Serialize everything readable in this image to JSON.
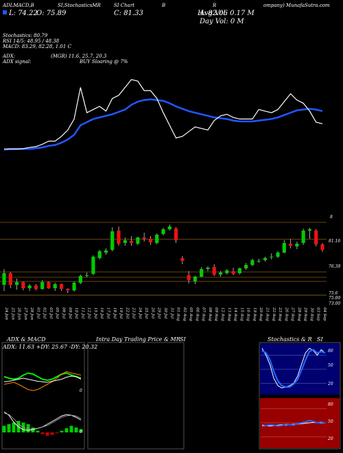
{
  "header": {
    "line1_parts": [
      "ADLMACD,B",
      "SI,StochasticsMR",
      "SI Chart",
      "B",
      "R"
    ],
    "line1_right": "ompany) MunafaSutra.com",
    "price_line": [
      "L: 74.22",
      "O: 75.89",
      "C: 81.33",
      "H: 82.06"
    ],
    "avg_vol": "Avg Vol: 0.17 M",
    "day_vol": "Day Vol: 0   M"
  },
  "indicators": {
    "stochastics": "Stochastics: 80.79",
    "rsi": "RSI 14/5: 48.95 / 48.38",
    "macd": "MACD: 83.29, 82.28, 1.01 C",
    "adx": "ADX:",
    "adx_values": "(MGR) 11.6, 25.7, 20.3",
    "adx_signal": "ADX  signal:",
    "signal_text": "BUY Sloaring @ 7%"
  },
  "price_levels": {
    "labels": [
      "8",
      "81.16",
      "76.39",
      "75.6",
      "75.00",
      "73.00"
    ]
  },
  "date_labels": [
    "24 Jun",
    "25 Jun",
    "26 Jun",
    "27 Jun",
    "28 Jun",
    "01 Jul",
    "02 Jul",
    "03 Jul",
    "05 Jul",
    "08 Jul",
    "09 Jul",
    "10 Jul",
    "11 Jul",
    "12 Jul",
    "15 Jul",
    "16 Jul",
    "17 Jul",
    "18 Jul",
    "19 Jul",
    "22 Jul",
    "23 Jul",
    "24 Jul",
    "25 Jul",
    "26 Jul",
    "29 Jul",
    "30 Jul",
    "31 Jul",
    "01 Aug",
    "02 Aug",
    "05 Aug",
    "06 Aug",
    "07 Aug",
    "08 Aug",
    "09 Aug",
    "12 Aug",
    "13 Aug",
    "14 Aug",
    "15 Aug",
    "16 Aug",
    "19 Aug",
    "20 Aug",
    "21 Aug",
    "22 Aug",
    "23 Aug",
    "26 Aug",
    "27 Aug",
    "28 Aug",
    "29 Aug",
    "30 Aug",
    "03 Sep",
    "04 Sep"
  ],
  "bottom_panels": {
    "adx_title": "ADX  & MACD",
    "adx_values": "ADX: 11.63  +DY: 25.67  -DY: 20.32",
    "intraday_title": "Intra  Day Trading Price  & MR",
    "intraday_si": "SI",
    "stoch_title": "Stochastics & R",
    "stoch_si": "SI",
    "stoch_labels": [
      "80",
      "50",
      "20"
    ],
    "rsi_labels": [
      "80",
      "50",
      "20"
    ],
    "adx_scale": [
      "0"
    ],
    "macd_scale": [
      "0"
    ]
  },
  "colors": {
    "bull": "#00cc00",
    "bear": "#ee1111",
    "ema": "#2255ff",
    "price_line": "#ffffff",
    "stoch_bg": "#000070",
    "rsi_bg": "#990000"
  },
  "chart_data": [
    {
      "type": "line",
      "title": "",
      "series": [
        {
          "values": [
            23,
            23,
            23,
            23.2,
            24,
            24.5,
            26,
            28,
            28,
            31,
            35,
            42,
            62,
            46,
            48,
            50,
            47,
            55,
            57,
            62,
            67,
            66,
            60,
            60,
            55,
            46,
            38,
            30,
            31,
            34,
            37,
            36,
            35,
            41,
            44,
            45,
            43,
            42,
            42,
            42,
            48,
            47,
            46,
            48,
            53,
            58,
            54,
            52,
            47,
            40,
            39
          ]
        },
        {
          "values": [
            22.5,
            23,
            23,
            23,
            23,
            23.5,
            24,
            25,
            25.5,
            27,
            29,
            32,
            38,
            40,
            42,
            43,
            44,
            45,
            46.5,
            48,
            51,
            53,
            54,
            54.5,
            54,
            53.5,
            52,
            50,
            48.5,
            47,
            46,
            45,
            44,
            43,
            42.5,
            42,
            41,
            40.5,
            40.5,
            40.5,
            41,
            41.5,
            42,
            43,
            44.5,
            46,
            47.5,
            48,
            48.5,
            48,
            47
          ]
        }
      ]
    },
    {
      "type": "candlestick",
      "title": "",
      "ylabel": "",
      "x": [
        "24 Jun",
        "25 Jun",
        "26 Jun",
        "27 Jun",
        "28 Jun",
        "01 Jul",
        "02 Jul",
        "03 Jul",
        "05 Jul",
        "08 Jul",
        "09 Jul",
        "10 Jul",
        "11 Jul",
        "12 Jul",
        "15 Jul",
        "16 Jul",
        "17 Jul",
        "18 Jul",
        "19 Jul",
        "22 Jul",
        "23 Jul",
        "24 Jul",
        "25 Jul",
        "26 Jul",
        "29 Jul",
        "30 Jul",
        "31 Jul",
        "01 Aug",
        "02 Aug",
        "05 Aug",
        "06 Aug",
        "07 Aug",
        "08 Aug",
        "09 Aug",
        "12 Aug",
        "13 Aug",
        "14 Aug",
        "15 Aug",
        "16 Aug",
        "19 Aug",
        "20 Aug",
        "21 Aug",
        "22 Aug",
        "23 Aug",
        "26 Aug",
        "27 Aug",
        "28 Aug",
        "29 Aug",
        "30 Aug",
        "03 Sep",
        "04 Sep"
      ],
      "ohlc": [
        [
          74.5,
          76.8,
          73.6,
          76.2
        ],
        [
          76.2,
          76.4,
          74.0,
          74.5
        ],
        [
          74.5,
          75.4,
          73.8,
          74.9
        ],
        [
          74.9,
          75.0,
          73.7,
          74.0
        ],
        [
          74.0,
          74.6,
          73.6,
          74.4
        ],
        [
          74.4,
          74.6,
          73.7,
          73.9
        ],
        [
          73.9,
          75.2,
          73.8,
          74.9
        ],
        [
          74.9,
          75.0,
          73.9,
          74.0
        ],
        [
          74.0,
          74.8,
          73.6,
          74.6
        ],
        [
          74.6,
          74.7,
          73.6,
          73.9
        ],
        [
          73.9,
          74.0,
          73.3,
          73.7
        ],
        [
          73.7,
          75.0,
          73.5,
          74.8
        ],
        [
          74.8,
          76.0,
          74.6,
          75.8
        ],
        [
          75.8,
          76.3,
          75.6,
          75.9
        ],
        [
          76.1,
          78.8,
          75.9,
          78.6
        ],
        [
          78.4,
          79.6,
          78.2,
          79.4
        ],
        [
          79.2,
          79.8,
          78.9,
          79.5
        ],
        [
          79.6,
          82.9,
          79.4,
          82.3
        ],
        [
          82.4,
          83.0,
          80.2,
          80.5
        ],
        [
          80.6,
          81.4,
          80.2,
          81.0
        ],
        [
          80.9,
          81.6,
          80.2,
          80.6
        ],
        [
          80.5,
          81.5,
          80.3,
          81.4
        ],
        [
          81.4,
          82.1,
          80.8,
          81.2
        ],
        [
          81.2,
          81.6,
          80.3,
          80.7
        ],
        [
          80.6,
          82.0,
          80.4,
          81.8
        ],
        [
          81.9,
          82.8,
          81.7,
          82.6
        ],
        [
          82.6,
          83.3,
          82.4,
          83.0
        ],
        [
          82.7,
          82.9,
          80.6,
          81.0
        ],
        [
          78.4,
          78.7,
          77.5,
          78.0
        ],
        [
          75.9,
          76.5,
          74.7,
          75.2
        ],
        [
          75.0,
          75.8,
          74.6,
          75.7
        ],
        [
          75.7,
          77.1,
          75.6,
          76.8
        ],
        [
          76.8,
          77.2,
          76.5,
          77.0
        ],
        [
          77.1,
          77.5,
          75.8,
          76.0
        ],
        [
          76.0,
          76.5,
          75.7,
          76.3
        ],
        [
          76.2,
          76.8,
          76.0,
          76.6
        ],
        [
          76.5,
          77.0,
          75.9,
          76.1
        ],
        [
          76.2,
          77.0,
          76.0,
          76.9
        ],
        [
          76.9,
          77.7,
          76.7,
          77.4
        ],
        [
          77.4,
          78.3,
          77.2,
          78.1
        ],
        [
          77.9,
          78.3,
          77.7,
          78.0
        ],
        [
          78.1,
          78.6,
          77.9,
          78.4
        ],
        [
          78.5,
          79.1,
          78.2,
          78.6
        ],
        [
          78.6,
          79.4,
          78.4,
          79.2
        ],
        [
          79.2,
          81.0,
          79.1,
          80.6
        ],
        [
          80.5,
          81.2,
          79.8,
          80.2
        ],
        [
          80.1,
          80.8,
          79.7,
          80.5
        ],
        [
          80.6,
          82.7,
          80.3,
          82.4
        ],
        [
          82.4,
          82.8,
          81.2,
          82.6
        ],
        [
          82.4,
          82.6,
          80.1,
          80.4
        ],
        [
          80.4,
          80.6,
          79.3,
          79.6
        ]
      ]
    },
    {
      "type": "line",
      "title": "ADX  & MACD",
      "series": [
        {
          "values": [
            55,
            52,
            50,
            52,
            58,
            62,
            60,
            55,
            50,
            48,
            50,
            55,
            60,
            62,
            58,
            55,
            52
          ]
        },
        {
          "values": [
            40,
            42,
            44,
            40,
            35,
            30,
            28,
            30,
            35,
            40,
            45,
            52,
            60,
            65,
            62,
            60,
            58
          ]
        },
        {
          "values": [
            45,
            46,
            48,
            50,
            52,
            50,
            48,
            46,
            45,
            44,
            46,
            48,
            50,
            54,
            56,
            55,
            50
          ]
        }
      ]
    },
    {
      "type": "line",
      "title": "Stochastics & R",
      "ylim": [
        0,
        100
      ],
      "series": [
        {
          "values": [
            95,
            80,
            60,
            30,
            15,
            10,
            12,
            15,
            20,
            35,
            60,
            85,
            95,
            90,
            80,
            92,
            85
          ]
        },
        {
          "values": [
            90,
            85,
            70,
            45,
            25,
            15,
            12,
            12,
            18,
            28,
            48,
            70,
            88,
            92,
            85,
            88,
            85
          ]
        }
      ]
    },
    {
      "type": "line",
      "ylim": [
        0,
        100
      ],
      "series": [
        {
          "values": [
            42,
            44,
            46,
            45,
            43,
            44,
            47,
            46,
            45,
            48,
            50,
            52,
            55,
            53,
            50,
            52,
            49
          ]
        },
        {
          "values": [
            45,
            44,
            43,
            44,
            45,
            46,
            45,
            46,
            47,
            47,
            48,
            49,
            50,
            51,
            50,
            50,
            49
          ]
        }
      ]
    }
  ]
}
